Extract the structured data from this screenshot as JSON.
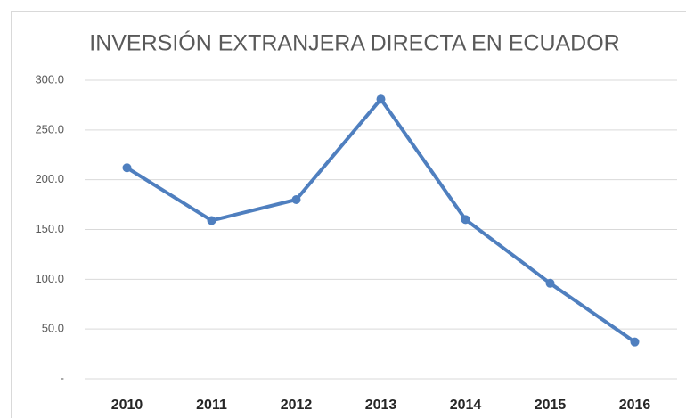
{
  "chart_data": {
    "type": "line",
    "title": "INVERSIÓN EXTRANJERA DIRECTA EN ECUADOR",
    "categories": [
      "2010",
      "2011",
      "2012",
      "2013",
      "2014",
      "2015",
      "2016"
    ],
    "values": [
      212,
      159,
      180,
      281,
      160,
      96,
      37
    ],
    "color": "#4f7fbf",
    "ylim": [
      0,
      300
    ],
    "yticks": [
      {
        "value": 0,
        "label": "-"
      },
      {
        "value": 50,
        "label": "50.0"
      },
      {
        "value": 100,
        "label": "100.0"
      },
      {
        "value": 150,
        "label": "150.0"
      },
      {
        "value": 200,
        "label": "200.0"
      },
      {
        "value": 250,
        "label": "250.0"
      },
      {
        "value": 300,
        "label": "300.0"
      }
    ],
    "grid": true
  }
}
